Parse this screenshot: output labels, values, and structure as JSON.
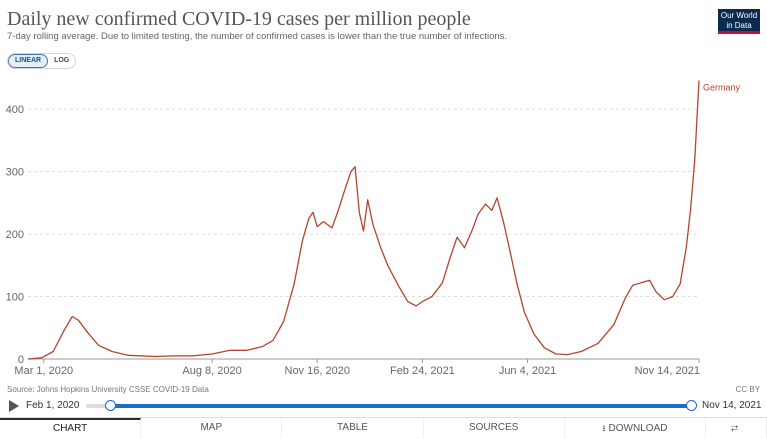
{
  "header": {
    "title": "Daily new confirmed COVID-19 cases per million people",
    "subtitle": "7-day rolling average. Due to limited testing, the number of confirmed cases is lower than the true number of infections.",
    "logo_line1": "Our World",
    "logo_line2": "in Data"
  },
  "scale_toggle": {
    "linear_label": "LINEAR",
    "log_label": "LOG",
    "selected": "linear"
  },
  "footer": {
    "source": "Source: Johns Hopkins University CSSE COVID-19 Data",
    "license": "CC BY"
  },
  "timeline": {
    "start_label": "Feb 1, 2020",
    "end_label": "Nov 14, 2021"
  },
  "tabs": [
    {
      "label": "CHART",
      "active": true
    },
    {
      "label": "MAP"
    },
    {
      "label": "TABLE"
    },
    {
      "label": "SOURCES"
    },
    {
      "label": "DOWNLOAD",
      "icon": "download-icon"
    }
  ],
  "share_icon": "share-icon",
  "colors": {
    "series": "#b2452e",
    "grid": "#dddddd",
    "accent": "#1a6ad1"
  },
  "chart_data": {
    "type": "line",
    "title": "Daily new confirmed COVID-19 cases per million people",
    "xlabel": "",
    "ylabel": "",
    "x_range": [
      "2020-02-15",
      "2021-11-14"
    ],
    "ylim": [
      0,
      450
    ],
    "y_ticks": [
      0,
      100,
      200,
      300,
      400
    ],
    "x_ticks": [
      {
        "date": "2020-03-01",
        "label": "Mar 1, 2020"
      },
      {
        "date": "2020-08-08",
        "label": "Aug 8, 2020"
      },
      {
        "date": "2020-11-16",
        "label": "Nov 16, 2020"
      },
      {
        "date": "2021-02-24",
        "label": "Feb 24, 2021"
      },
      {
        "date": "2021-06-04",
        "label": "Jun 4, 2021"
      },
      {
        "date": "2021-11-14",
        "label": "Nov 14, 2021"
      }
    ],
    "grid": true,
    "series": [
      {
        "name": "Germany",
        "points": [
          [
            "2020-02-15",
            0
          ],
          [
            "2020-02-28",
            2
          ],
          [
            "2020-03-10",
            12
          ],
          [
            "2020-03-20",
            45
          ],
          [
            "2020-03-28",
            68
          ],
          [
            "2020-04-03",
            62
          ],
          [
            "2020-04-12",
            42
          ],
          [
            "2020-04-22",
            22
          ],
          [
            "2020-05-05",
            12
          ],
          [
            "2020-05-20",
            6
          ],
          [
            "2020-06-15",
            4
          ],
          [
            "2020-07-01",
            5
          ],
          [
            "2020-07-20",
            5
          ],
          [
            "2020-08-08",
            8
          ],
          [
            "2020-08-25",
            14
          ],
          [
            "2020-09-10",
            14
          ],
          [
            "2020-09-25",
            20
          ],
          [
            "2020-10-05",
            30
          ],
          [
            "2020-10-15",
            60
          ],
          [
            "2020-10-25",
            120
          ],
          [
            "2020-11-02",
            190
          ],
          [
            "2020-11-08",
            225
          ],
          [
            "2020-11-12",
            235
          ],
          [
            "2020-11-16",
            212
          ],
          [
            "2020-11-22",
            220
          ],
          [
            "2020-11-30",
            210
          ],
          [
            "2020-12-06",
            238
          ],
          [
            "2020-12-12",
            270
          ],
          [
            "2020-12-18",
            300
          ],
          [
            "2020-12-22",
            308
          ],
          [
            "2020-12-26",
            235
          ],
          [
            "2020-12-30",
            205
          ],
          [
            "2021-01-03",
            255
          ],
          [
            "2021-01-08",
            215
          ],
          [
            "2021-01-15",
            180
          ],
          [
            "2021-01-22",
            150
          ],
          [
            "2021-02-01",
            118
          ],
          [
            "2021-02-10",
            92
          ],
          [
            "2021-02-18",
            85
          ],
          [
            "2021-02-24",
            92
          ],
          [
            "2021-03-05",
            100
          ],
          [
            "2021-03-15",
            122
          ],
          [
            "2021-03-22",
            160
          ],
          [
            "2021-03-29",
            195
          ],
          [
            "2021-04-05",
            178
          ],
          [
            "2021-04-12",
            205
          ],
          [
            "2021-04-18",
            232
          ],
          [
            "2021-04-25",
            248
          ],
          [
            "2021-05-01",
            238
          ],
          [
            "2021-05-06",
            258
          ],
          [
            "2021-05-12",
            220
          ],
          [
            "2021-05-18",
            175
          ],
          [
            "2021-05-25",
            120
          ],
          [
            "2021-06-01",
            75
          ],
          [
            "2021-06-10",
            40
          ],
          [
            "2021-06-20",
            18
          ],
          [
            "2021-07-01",
            8
          ],
          [
            "2021-07-12",
            7
          ],
          [
            "2021-07-25",
            12
          ],
          [
            "2021-08-10",
            25
          ],
          [
            "2021-08-25",
            55
          ],
          [
            "2021-09-05",
            98
          ],
          [
            "2021-09-12",
            118
          ],
          [
            "2021-09-20",
            122
          ],
          [
            "2021-09-28",
            126
          ],
          [
            "2021-10-04",
            108
          ],
          [
            "2021-10-12",
            95
          ],
          [
            "2021-10-20",
            100
          ],
          [
            "2021-10-27",
            120
          ],
          [
            "2021-11-02",
            180
          ],
          [
            "2021-11-06",
            240
          ],
          [
            "2021-11-10",
            320
          ],
          [
            "2021-11-14",
            446
          ]
        ]
      }
    ]
  }
}
